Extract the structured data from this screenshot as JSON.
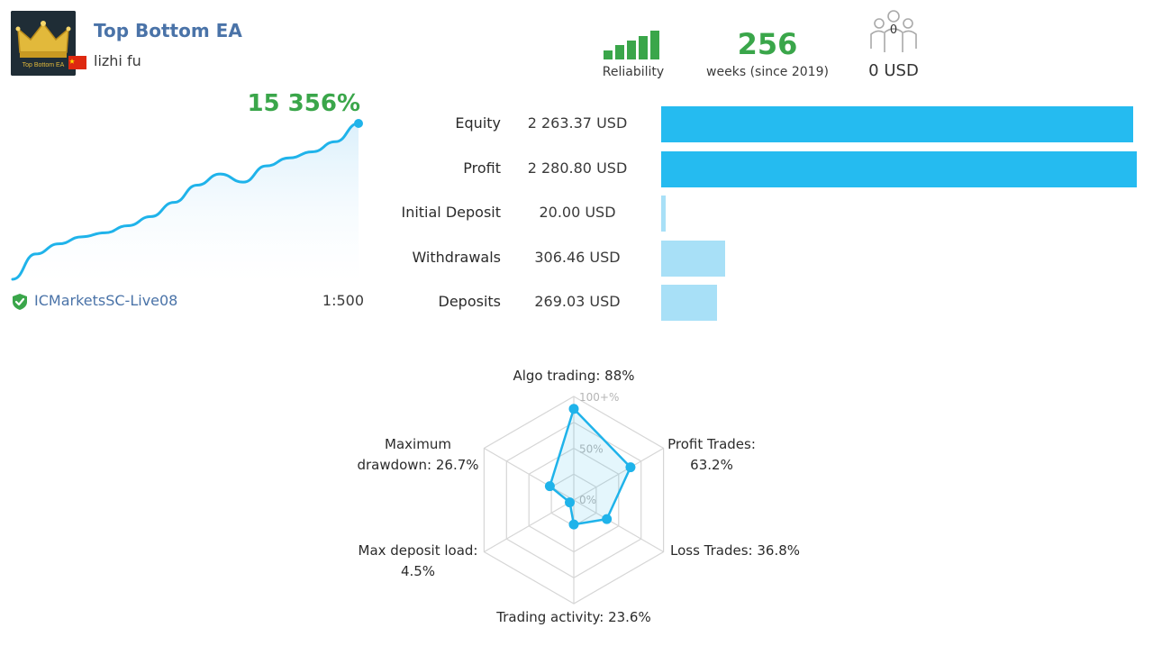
{
  "header": {
    "title": "Top Bottom EA",
    "logo_text": "Top Bottom EA",
    "author": "lizhi fu"
  },
  "stats": {
    "reliability_label": "Reliability",
    "reliability_bars": 5,
    "weeks_value": "256",
    "weeks_label": "weeks (since 2019)",
    "subscribers_count": "0",
    "subscribers_usd": "0 USD"
  },
  "growth": {
    "percent": "15 356%",
    "server": "ICMarketsSC-Live08",
    "leverage": "1:500",
    "series": [
      0,
      2.5,
      3.5,
      4.2,
      4.6,
      5.3,
      6.2,
      7.6,
      9.3,
      10.4,
      9.6,
      11.2,
      12.0,
      12.6,
      13.6,
      15.4
    ]
  },
  "bars": [
    {
      "label": "Equity",
      "value": "2 263.37 USD",
      "amount": 2263.37,
      "color": "#25bbf0"
    },
    {
      "label": "Profit",
      "value": "2 280.80 USD",
      "amount": 2280.8,
      "color": "#25bbf0"
    },
    {
      "label": "Initial Deposit",
      "value": "20.00 USD",
      "amount": 20.0,
      "color": "#a8e0f7"
    },
    {
      "label": "Withdrawals",
      "value": "306.46 USD",
      "amount": 306.46,
      "color": "#a8e0f7"
    },
    {
      "label": "Deposits",
      "value": "269.03 USD",
      "amount": 269.03,
      "color": "#a8e0f7"
    }
  ],
  "radar": {
    "scale_labels": [
      "100+%",
      "50%",
      "0%"
    ],
    "axes": [
      {
        "label_lines": [
          "Algo trading: 88%"
        ],
        "value": 88
      },
      {
        "label_lines": [
          "Profit Trades:",
          "63.2%"
        ],
        "value": 63.2
      },
      {
        "label_lines": [
          "Loss Trades: 36.8%"
        ],
        "value": 36.8
      },
      {
        "label_lines": [
          "Trading activity: 23.6%"
        ],
        "value": 23.6
      },
      {
        "label_lines": [
          "Max deposit load:",
          "4.5%"
        ],
        "value": 4.5
      },
      {
        "label_lines": [
          "Maximum",
          "drawdown: 26.7%"
        ],
        "value": 26.7
      }
    ]
  },
  "colors": {
    "accent": "#1fb3ea",
    "green": "#3aa64a",
    "link": "#4a73a8"
  }
}
